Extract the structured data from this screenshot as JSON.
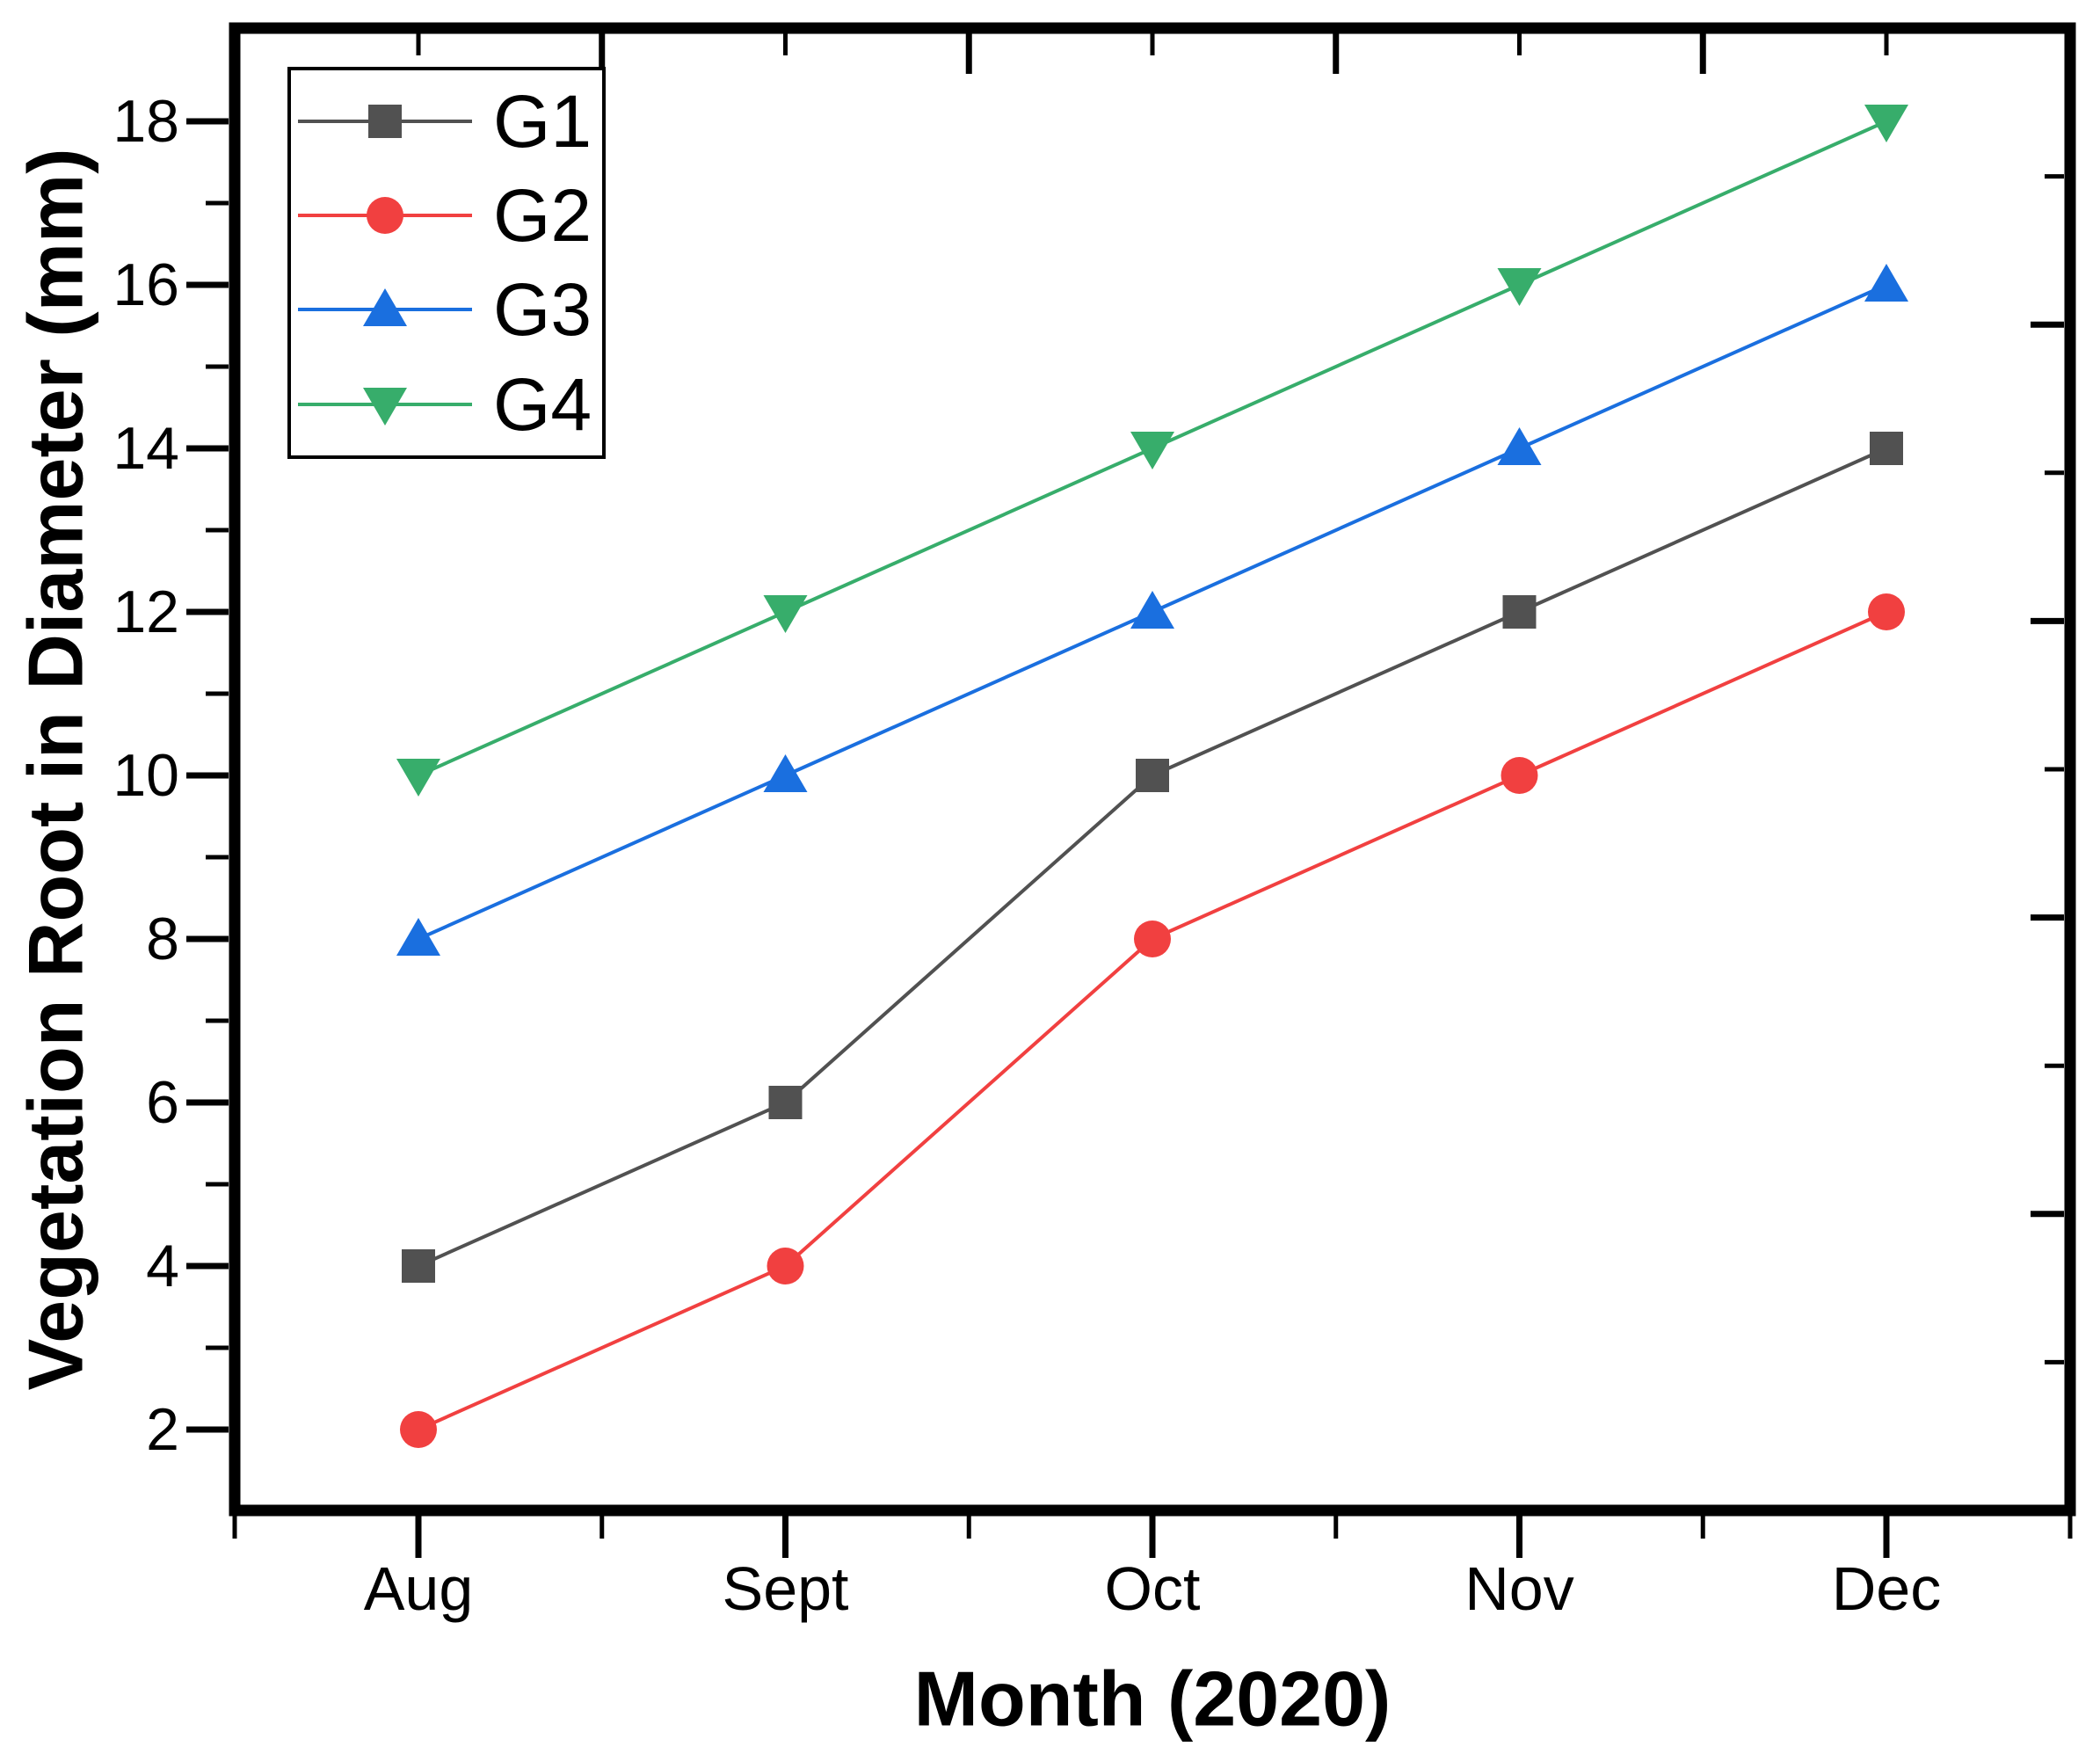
{
  "figure": {
    "background": "#ffffff",
    "axis_color": "#000000"
  },
  "chart_data": {
    "type": "line",
    "title": "",
    "categories": [
      "Aug",
      "Sept",
      "Oct",
      "Nov",
      "Dec"
    ],
    "xlabel": "Month (2020)",
    "ylabel": "Vegetation Root in Diameter (mm)",
    "ylim": [
      1,
      19.1
    ],
    "yticks_major": [
      2,
      4,
      6,
      8,
      10,
      12,
      14,
      16,
      18
    ],
    "yticks_minor": [
      3,
      5,
      7,
      9,
      11,
      13,
      15,
      17
    ],
    "grid": false,
    "legend": {
      "position": "top-left",
      "border_color": "#000000",
      "labels": [
        "G1",
        "G2",
        "G3",
        "G4"
      ]
    },
    "series": [
      {
        "name": "G1",
        "color": "#515151",
        "marker": "square",
        "values": [
          4,
          6,
          10,
          12,
          14
        ]
      },
      {
        "name": "G2",
        "color": "#F14040",
        "marker": "circle",
        "values": [
          2,
          4,
          8,
          10,
          12
        ]
      },
      {
        "name": "G3",
        "color": "#1A6FDF",
        "marker": "triangle-up",
        "values": [
          8,
          10,
          12,
          14,
          16
        ]
      },
      {
        "name": "G4",
        "color": "#37AD6B",
        "marker": "triangle-down",
        "values": [
          10,
          12,
          14,
          16,
          18
        ]
      }
    ],
    "secondary_axes": {
      "top": {
        "ticks": "inward",
        "minor_at_categories": true,
        "major_at_category_midpoints": true
      },
      "right": {
        "ticks": "inward",
        "range": [
          0,
          20
        ],
        "tick_step": 2,
        "major_every": 4
      }
    }
  }
}
